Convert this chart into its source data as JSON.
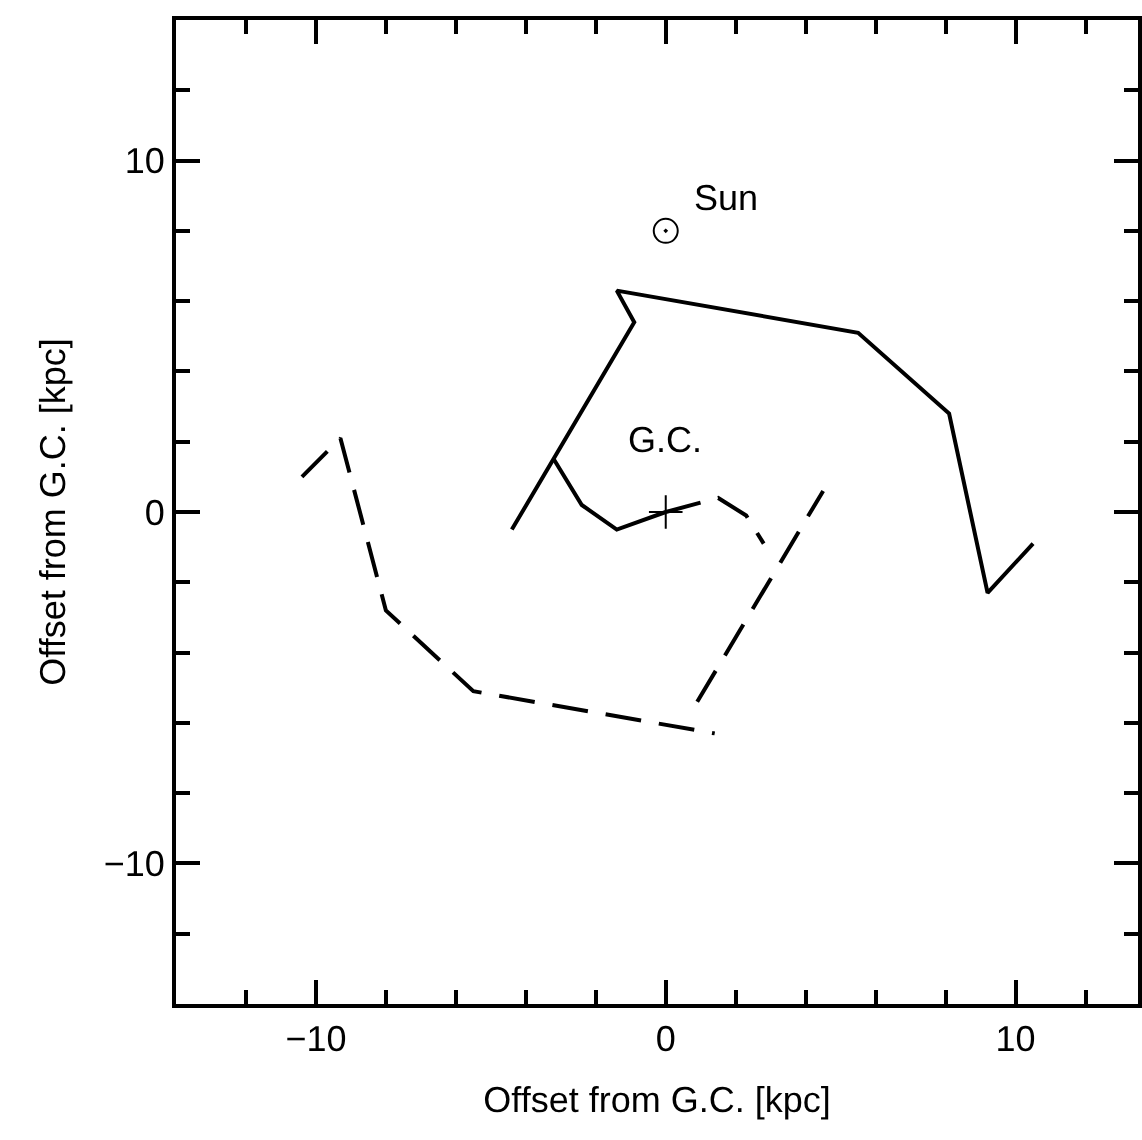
{
  "chart_data": {
    "type": "line",
    "xlabel": "Offset from G.C. [kpc]",
    "ylabel": "Offset from G.C. [kpc]",
    "xlim": [
      -14,
      13.5
    ],
    "ylim": [
      -14,
      14
    ],
    "xticks": [
      {
        "value": -12,
        "label": null
      },
      -10,
      {
        "value": -8,
        "label": null
      },
      {
        "value": -6,
        "label": null
      },
      {
        "value": -4,
        "label": null
      },
      {
        "value": -2,
        "label": null
      },
      0,
      {
        "value": 2,
        "label": null
      },
      {
        "value": 4,
        "label": null
      },
      {
        "value": 6,
        "label": null
      },
      {
        "value": 8,
        "label": null
      },
      10,
      {
        "value": 12,
        "label": null
      }
    ],
    "yticks": [
      {
        "value": -12,
        "label": null
      },
      -10,
      {
        "value": -8,
        "label": null
      },
      {
        "value": -6,
        "label": null
      },
      {
        "value": -4,
        "label": null
      },
      {
        "value": -2,
        "label": null
      },
      0,
      {
        "value": 2,
        "label": null
      },
      {
        "value": 4,
        "label": null
      },
      {
        "value": 6,
        "label": null
      },
      {
        "value": 8,
        "label": null
      },
      10,
      {
        "value": 12,
        "label": null
      }
    ],
    "series": [
      {
        "color": "#000000",
        "line_style": "solid",
        "x": [
          -4.4,
          -0.9,
          -1.4,
          5.5,
          8.1,
          9.2,
          10.5
        ],
        "values": [
          -0.5,
          5.4,
          6.3,
          5.1,
          2.8,
          -2.3,
          -0.9
        ]
      },
      {
        "color": "#000000",
        "line_style": "solid",
        "x": [
          -3.2,
          -2.4,
          -1.4,
          0
        ],
        "values": [
          1.5,
          0.2,
          -0.5,
          0
        ]
      },
      {
        "color": "#000000",
        "line_style": "dashed",
        "x": [
          0,
          1.5,
          2.3,
          2.8
        ],
        "values": [
          0,
          0.4,
          -0.1,
          -0.9
        ]
      },
      {
        "color": "#000000",
        "line_style": "dashed",
        "x": [
          -10.4,
          -9.3,
          -8.0,
          -5.5,
          1.4
        ],
        "values": [
          1.0,
          2.1,
          -2.8,
          -5.1,
          -6.3
        ]
      },
      {
        "color": "#000000",
        "line_style": "dashed",
        "x": [
          0.9,
          4.5
        ],
        "values": [
          -5.4,
          0.6
        ]
      },
      {
        "type": "scatter",
        "color": "#000000",
        "marker": "circle-dot",
        "x": [
          0
        ],
        "values": [
          8
        ]
      },
      {
        "type": "scatter",
        "color": "#000000",
        "marker": "cross",
        "x": [
          0
        ],
        "values": [
          0
        ]
      }
    ],
    "annotations": [
      {
        "text": "Sun",
        "x": 0,
        "y": 8
      },
      {
        "text": "G.C.",
        "x": 0,
        "y": 0
      }
    ]
  }
}
